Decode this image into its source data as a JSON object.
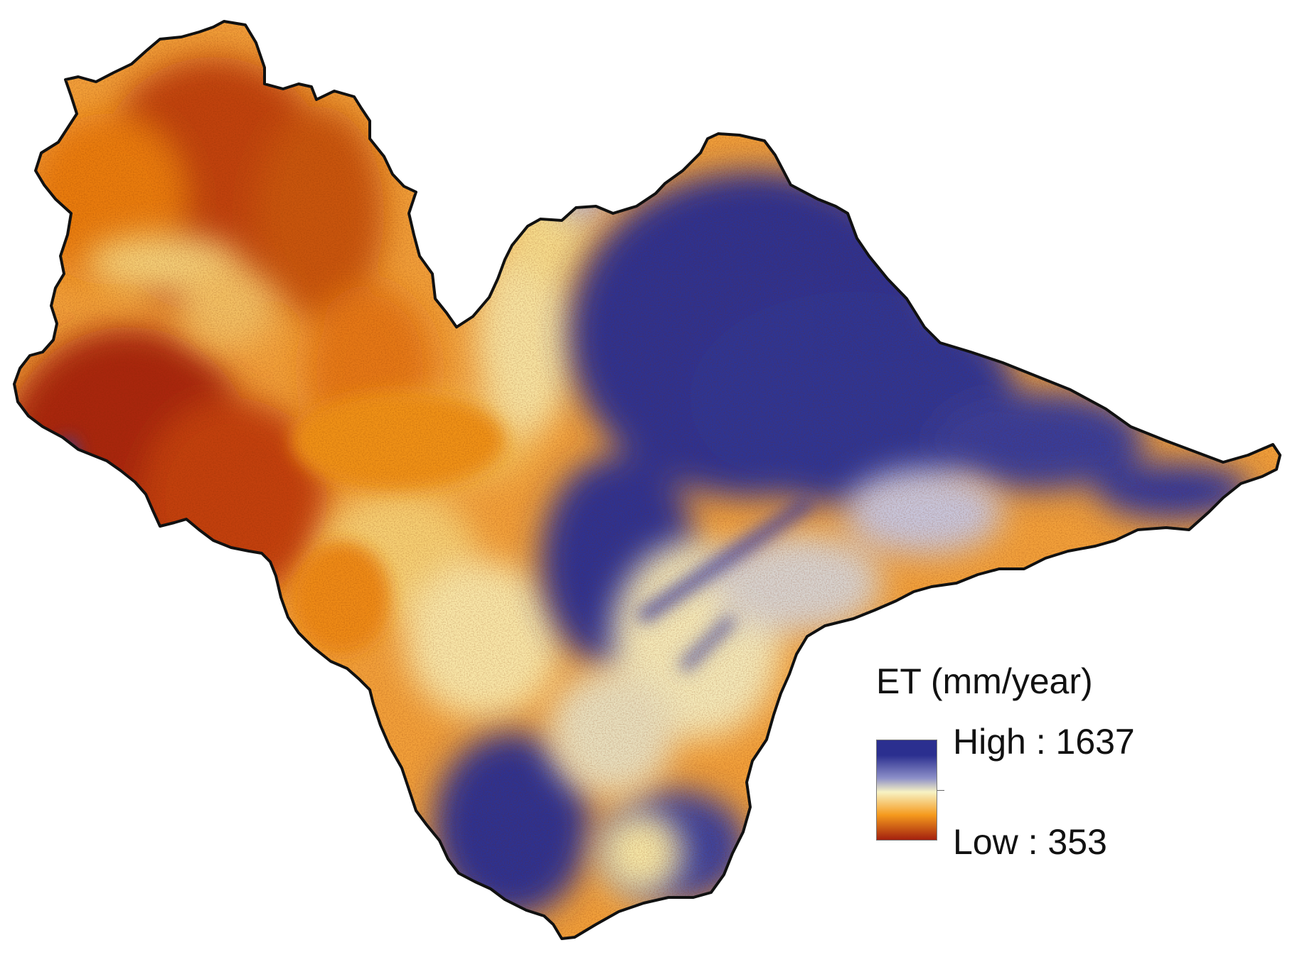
{
  "legend": {
    "title": "ET (mm/year)",
    "high_label": "High : 1637",
    "low_label": "Low : 353",
    "high_value": 1637,
    "low_value": 353
  },
  "colors": {
    "high": "#2b2f8f",
    "mid_high": "#8c8fc8",
    "mid": "#f7f2c4",
    "mid_low": "#f59a1d",
    "low": "#a3200e",
    "boundary": "#111111",
    "background": "#ffffff"
  }
}
